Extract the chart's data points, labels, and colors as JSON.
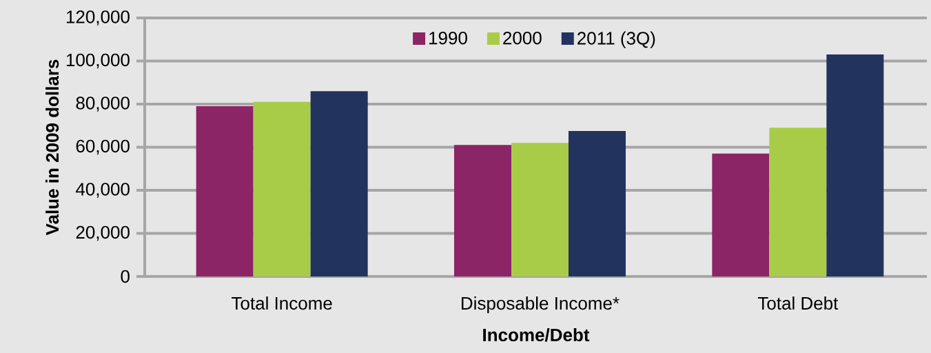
{
  "chart_data": {
    "type": "bar",
    "xlabel": "Income/Debt",
    "ylabel": "Value in 2009 dollars",
    "categories": [
      "Total Income",
      "Disposable Income*",
      "Total Debt"
    ],
    "series": [
      {
        "name": "1990",
        "color": "#8b2565",
        "values": [
          79000,
          61000,
          57000
        ]
      },
      {
        "name": "2000",
        "color": "#a9cc48",
        "values": [
          81000,
          62000,
          69000
        ]
      },
      {
        "name": "2011 (3Q)",
        "color": "#22335e",
        "values": [
          86000,
          67500,
          103000
        ]
      }
    ],
    "ylim": [
      0,
      120000
    ],
    "yticks": [
      {
        "value": 0,
        "label": "0"
      },
      {
        "value": 20000,
        "label": "20,000"
      },
      {
        "value": 40000,
        "label": "40,000"
      },
      {
        "value": 60000,
        "label": "60,000"
      },
      {
        "value": 80000,
        "label": "80,000"
      },
      {
        "value": 100000,
        "label": "100,000"
      },
      {
        "value": 120000,
        "label": "120,000"
      }
    ],
    "grid": "y",
    "legend": "top"
  }
}
